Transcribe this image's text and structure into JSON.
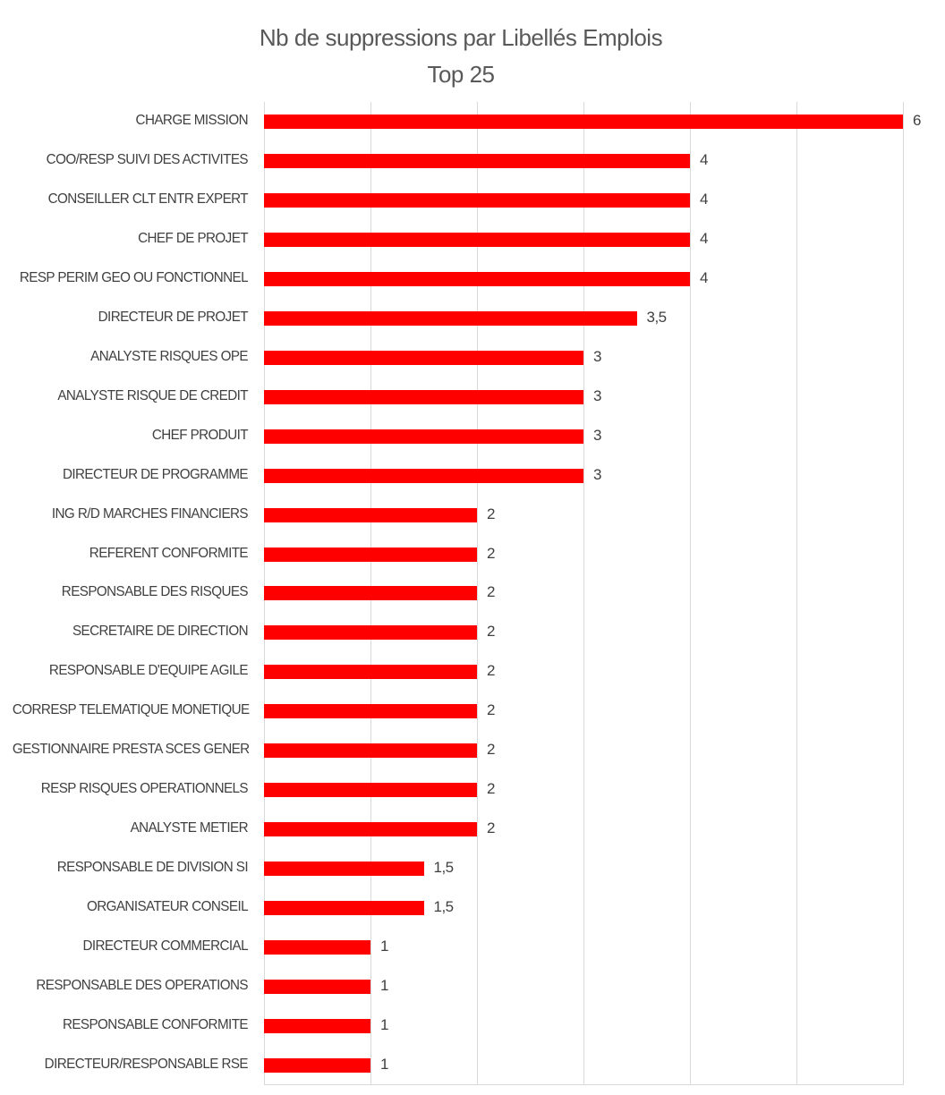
{
  "title": {
    "line1": "Nb de suppressions par Libellés Emplois",
    "line2": "Top 25"
  },
  "chart_data": {
    "type": "bar",
    "orientation": "horizontal",
    "title": "Nb de suppressions par Libellés Emplois",
    "subtitle": "Top 25",
    "categories": [
      "CHARGE MISSION",
      "COO/RESP SUIVI DES ACTIVITES",
      "CONSEILLER CLT ENTR EXPERT",
      "CHEF DE PROJET",
      "RESP PERIM GEO OU FONCTIONNEL",
      "DIRECTEUR DE PROJET",
      "ANALYSTE RISQUES OPE",
      "ANALYSTE RISQUE DE CREDIT",
      "CHEF PRODUIT",
      "DIRECTEUR DE PROGRAMME",
      "ING R/D MARCHES FINANCIERS",
      "REFERENT CONFORMITE",
      "RESPONSABLE DES RISQUES",
      "SECRETAIRE DE DIRECTION",
      "RESPONSABLE D'EQUIPE AGILE",
      "CORRESP TELEMATIQUE MONETIQUE",
      "GESTIONNAIRE PRESTA SCES GENER",
      "RESP RISQUES OPERATIONNELS",
      "ANALYSTE METIER",
      "RESPONSABLE DE DIVISION SI",
      "ORGANISATEUR CONSEIL",
      "DIRECTEUR COMMERCIAL",
      "RESPONSABLE DES OPERATIONS",
      "RESPONSABLE CONFORMITE",
      "DIRECTEUR/RESPONSABLE RSE"
    ],
    "values": [
      6,
      4,
      4,
      4,
      4,
      3.5,
      3,
      3,
      3,
      3,
      2,
      2,
      2,
      2,
      2,
      2,
      2,
      2,
      2,
      1.5,
      1.5,
      1,
      1,
      1,
      1
    ],
    "value_labels": [
      "6",
      "4",
      "4",
      "4",
      "4",
      "3,5",
      "3",
      "3",
      "3",
      "3",
      "2",
      "2",
      "2",
      "2",
      "2",
      "2",
      "2",
      "2",
      "2",
      "1,5",
      "1,5",
      "1",
      "1",
      "1",
      "1"
    ],
    "xlim": [
      0,
      6
    ],
    "gridline_step": 1,
    "grid": true,
    "legend_position": "none",
    "xlabel": "",
    "ylabel": "",
    "bar_color": "#ff0000",
    "gridline_color": "#d9d9d9",
    "label_color": "#404040",
    "title_color": "#595959"
  }
}
